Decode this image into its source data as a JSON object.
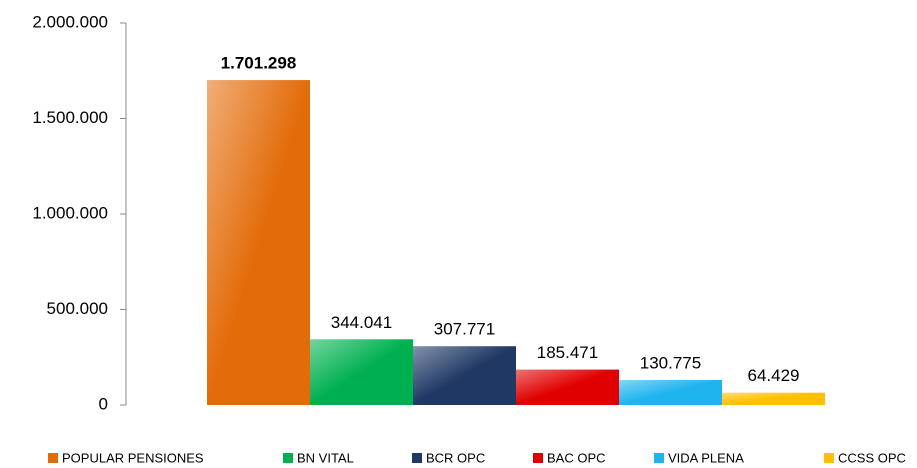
{
  "chart_data": {
    "type": "bar",
    "series": [
      {
        "name": "POPULAR PENSIONES",
        "color": "#e36c0a",
        "values": [
          1701298
        ],
        "value_labels": [
          "1.701.298"
        ]
      },
      {
        "name": "BN VITAL",
        "color": "#00b050",
        "values": [
          344041
        ],
        "value_labels": [
          "344.041"
        ]
      },
      {
        "name": "BCR OPC",
        "color": "#1f3864",
        "values": [
          307771
        ],
        "value_labels": [
          "307.771"
        ]
      },
      {
        "name": "BAC OPC",
        "color": "#e00000",
        "values": [
          185471
        ],
        "value_labels": [
          "185.471"
        ]
      },
      {
        "name": "VIDA PLENA",
        "color": "#1fb4ee",
        "values": [
          130775
        ],
        "value_labels": [
          "130.775"
        ]
      },
      {
        "name": "CCSS OPC",
        "color": "#ffc000",
        "values": [
          64429
        ],
        "value_labels": [
          "64.429"
        ]
      }
    ],
    "ylim": [
      0,
      2000000
    ],
    "yticks": [
      0,
      {
        "value": 500000,
        "label": "500.000"
      },
      {
        "value": 1000000,
        "label": "1.000.000"
      },
      {
        "value": 1500000,
        "label": "1.500.000"
      },
      {
        "value": 2000000,
        "label": "2.000.000"
      }
    ],
    "grid": false,
    "legend": "bottom"
  }
}
